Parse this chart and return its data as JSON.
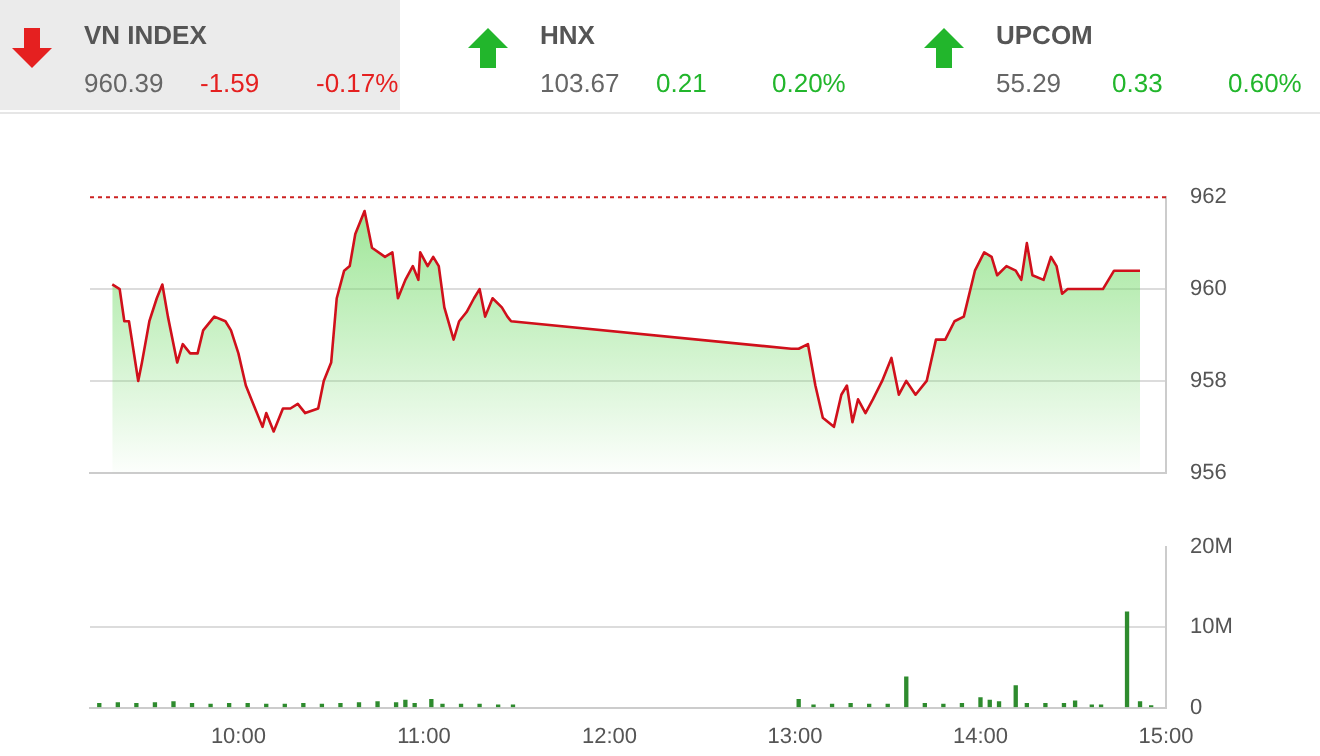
{
  "chart_data": [
    {
      "type": "other",
      "annotations": [
        "VN INDEX",
        "960.39",
        "-1.59",
        "-0.17%",
        "HNX",
        "103.67",
        "0.21",
        "0.20%",
        "UPCOM",
        "55.29",
        "0.33",
        "0.60%"
      ],
      "colors": [
        "#e52020",
        "#22b62c",
        "#22b62c"
      ]
    },
    {
      "type": "area",
      "marker": "none",
      "legend": false,
      "grid": "y",
      "xlim": [
        9.2,
        15
      ],
      "ylim": [
        956,
        962
      ],
      "yticks": [
        956,
        958,
        960,
        962
      ],
      "ref_lines": [
        {
          "axis": "y",
          "value": 962,
          "color": "#cc2222",
          "line_style": "dotted"
        }
      ],
      "series": [
        {
          "color": "#d0101b",
          "x": [
            9.32,
            9.36,
            9.385,
            9.41,
            9.46,
            9.48,
            9.52,
            9.56,
            9.59,
            9.62,
            9.67,
            9.7,
            9.74,
            9.78,
            9.81,
            9.87,
            9.93,
            9.96,
            10.0,
            10.04,
            10.08,
            10.13,
            10.15,
            10.19,
            10.24,
            10.28,
            10.32,
            10.36,
            10.43,
            10.46,
            10.5,
            10.53,
            10.57,
            10.6,
            10.63,
            10.68,
            10.72,
            10.79,
            10.83,
            10.86,
            10.9,
            10.94,
            10.97,
            10.98,
            11.02,
            11.05,
            11.08,
            11.11,
            11.16,
            11.19,
            11.23,
            11.27,
            11.3,
            11.33,
            11.37,
            11.42,
            11.45,
            11.47,
            12.98,
            13.02,
            13.07,
            13.11,
            13.15,
            13.21,
            13.25,
            13.28,
            13.31,
            13.34,
            13.38,
            13.42,
            13.47,
            13.52,
            13.56,
            13.6,
            13.65,
            13.71,
            13.76,
            13.81,
            13.86,
            13.91,
            13.97,
            14.02,
            14.06,
            14.09,
            14.14,
            14.19,
            14.22,
            14.25,
            14.28,
            14.34,
            14.38,
            14.41,
            14.44,
            14.47,
            14.66,
            14.72,
            14.86
          ],
          "values": [
            960.1,
            960.0,
            959.3,
            959.3,
            958.0,
            958.4,
            959.3,
            959.8,
            960.1,
            959.4,
            958.4,
            958.8,
            958.6,
            958.6,
            959.1,
            959.4,
            959.3,
            959.1,
            958.6,
            957.9,
            957.5,
            957.0,
            957.3,
            956.9,
            957.4,
            957.4,
            957.5,
            957.3,
            957.4,
            958.0,
            958.4,
            959.8,
            960.4,
            960.5,
            961.2,
            961.7,
            960.9,
            960.7,
            960.8,
            959.8,
            960.2,
            960.5,
            960.2,
            960.8,
            960.5,
            960.7,
            960.5,
            959.6,
            958.9,
            959.3,
            959.5,
            959.8,
            960.0,
            959.4,
            959.8,
            959.6,
            959.4,
            959.3,
            958.7,
            958.7,
            958.8,
            957.9,
            957.2,
            957.0,
            957.7,
            957.9,
            957.1,
            957.6,
            957.3,
            957.6,
            958.0,
            958.5,
            957.7,
            958.0,
            957.7,
            958.0,
            958.9,
            958.9,
            959.3,
            959.4,
            960.4,
            960.8,
            960.7,
            960.3,
            960.5,
            960.4,
            960.2,
            961.0,
            960.3,
            960.2,
            960.7,
            960.5,
            959.9,
            960.0,
            960.0,
            960.4,
            960.4
          ]
        }
      ]
    },
    {
      "type": "bar",
      "legend": false,
      "grid": "y",
      "xlim": [
        9.2,
        15
      ],
      "xticks": [
        {
          "value": 10,
          "label": "10:00"
        },
        {
          "value": 11,
          "label": "11:00"
        },
        {
          "value": 12,
          "label": "12:00"
        },
        {
          "value": 13,
          "label": "13:00"
        },
        {
          "value": 14,
          "label": "14:00"
        },
        {
          "value": 15,
          "label": "15:00"
        }
      ],
      "ylim": [
        0,
        20
      ],
      "yticks": [
        0,
        {
          "value": 10,
          "label": "10M"
        },
        {
          "value": 20,
          "label": "20M"
        }
      ],
      "x": [
        9.25,
        9.35,
        9.45,
        9.55,
        9.65,
        9.75,
        9.85,
        9.95,
        10.05,
        10.15,
        10.25,
        10.35,
        10.45,
        10.55,
        10.65,
        10.75,
        10.85,
        10.9,
        10.95,
        11.04,
        11.1,
        11.2,
        11.3,
        11.4,
        11.48,
        13.02,
        13.1,
        13.2,
        13.3,
        13.4,
        13.5,
        13.6,
        13.7,
        13.8,
        13.9,
        14.0,
        14.05,
        14.1,
        14.19,
        14.25,
        14.35,
        14.45,
        14.51,
        14.6,
        14.65,
        14.79,
        14.86,
        14.92
      ],
      "values": [
        0.5,
        0.6,
        0.5,
        0.6,
        0.7,
        0.5,
        0.4,
        0.5,
        0.5,
        0.4,
        0.4,
        0.5,
        0.4,
        0.5,
        0.6,
        0.7,
        0.6,
        0.9,
        0.5,
        1.0,
        0.4,
        0.4,
        0.4,
        0.3,
        0.3,
        1.0,
        0.3,
        0.4,
        0.5,
        0.4,
        0.4,
        3.8,
        0.5,
        0.4,
        0.5,
        1.2,
        0.9,
        0.7,
        2.7,
        0.5,
        0.5,
        0.5,
        0.8,
        0.3,
        0.3,
        11.9,
        0.7,
        0.2
      ],
      "color": "#2e8b2e"
    }
  ]
}
